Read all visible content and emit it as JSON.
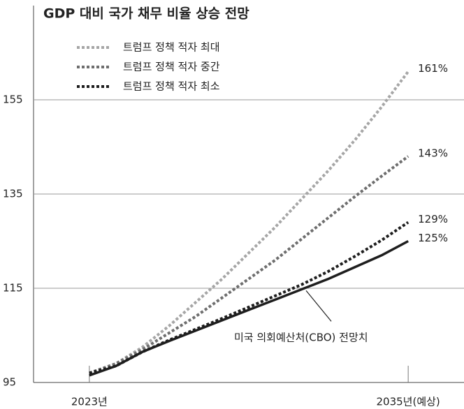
{
  "chart_data": {
    "type": "line",
    "title": "GDP 대비 국가 채무 비율 상승 전망",
    "x": [
      2023,
      2024,
      2025,
      2026,
      2027,
      2028,
      2029,
      2030,
      2031,
      2032,
      2033,
      2034,
      2035
    ],
    "xlim": [
      2020.9,
      2037.1
    ],
    "xticks": [
      {
        "value": 2023,
        "label": "2023년"
      },
      {
        "value": 2035,
        "label": "2035년(예상)"
      }
    ],
    "ylim": [
      95,
      175
    ],
    "yticks": [
      95,
      115,
      135,
      155
    ],
    "grid": true,
    "series": [
      {
        "name": "트럼프 정책 적자 최대",
        "color": "#a6a6a6",
        "style": "dotted",
        "values": [
          97,
          99,
          102.5,
          107,
          112,
          117,
          122.5,
          128,
          134,
          140,
          146.5,
          153.5,
          161
        ],
        "value_labels": [
          null,
          null,
          null,
          null,
          null,
          null,
          null,
          null,
          null,
          null,
          null,
          null,
          "161%"
        ]
      },
      {
        "name": "트럼프 정책 적자 중간",
        "color": "#6e6e6e",
        "style": "dotted",
        "values": [
          97,
          99,
          102,
          105.5,
          109,
          113,
          117,
          121,
          125.5,
          130,
          134.5,
          138.8,
          143
        ],
        "value_labels": [
          null,
          null,
          null,
          null,
          null,
          null,
          null,
          null,
          null,
          null,
          null,
          null,
          "143%"
        ]
      },
      {
        "name": "트럼프 정책 적자 최소",
        "color": "#1e1e1e",
        "style": "dotted",
        "values": [
          97,
          98.5,
          101.5,
          104,
          106.3,
          108.6,
          111,
          113.4,
          115.8,
          118.6,
          121.8,
          125.2,
          129
        ],
        "value_labels": [
          null,
          null,
          null,
          null,
          null,
          null,
          null,
          null,
          null,
          null,
          null,
          null,
          "129%"
        ]
      },
      {
        "name": "미국 의회예산처(CBO) 전망치",
        "color": "#1e1e1e",
        "style": "solid",
        "values": [
          96.5,
          98.5,
          101.5,
          103.8,
          106,
          108.2,
          110.4,
          112.6,
          114.8,
          117,
          119.5,
          122,
          125
        ],
        "value_labels": [
          null,
          null,
          null,
          null,
          null,
          null,
          null,
          null,
          null,
          null,
          null,
          null,
          "125%"
        ]
      }
    ]
  }
}
